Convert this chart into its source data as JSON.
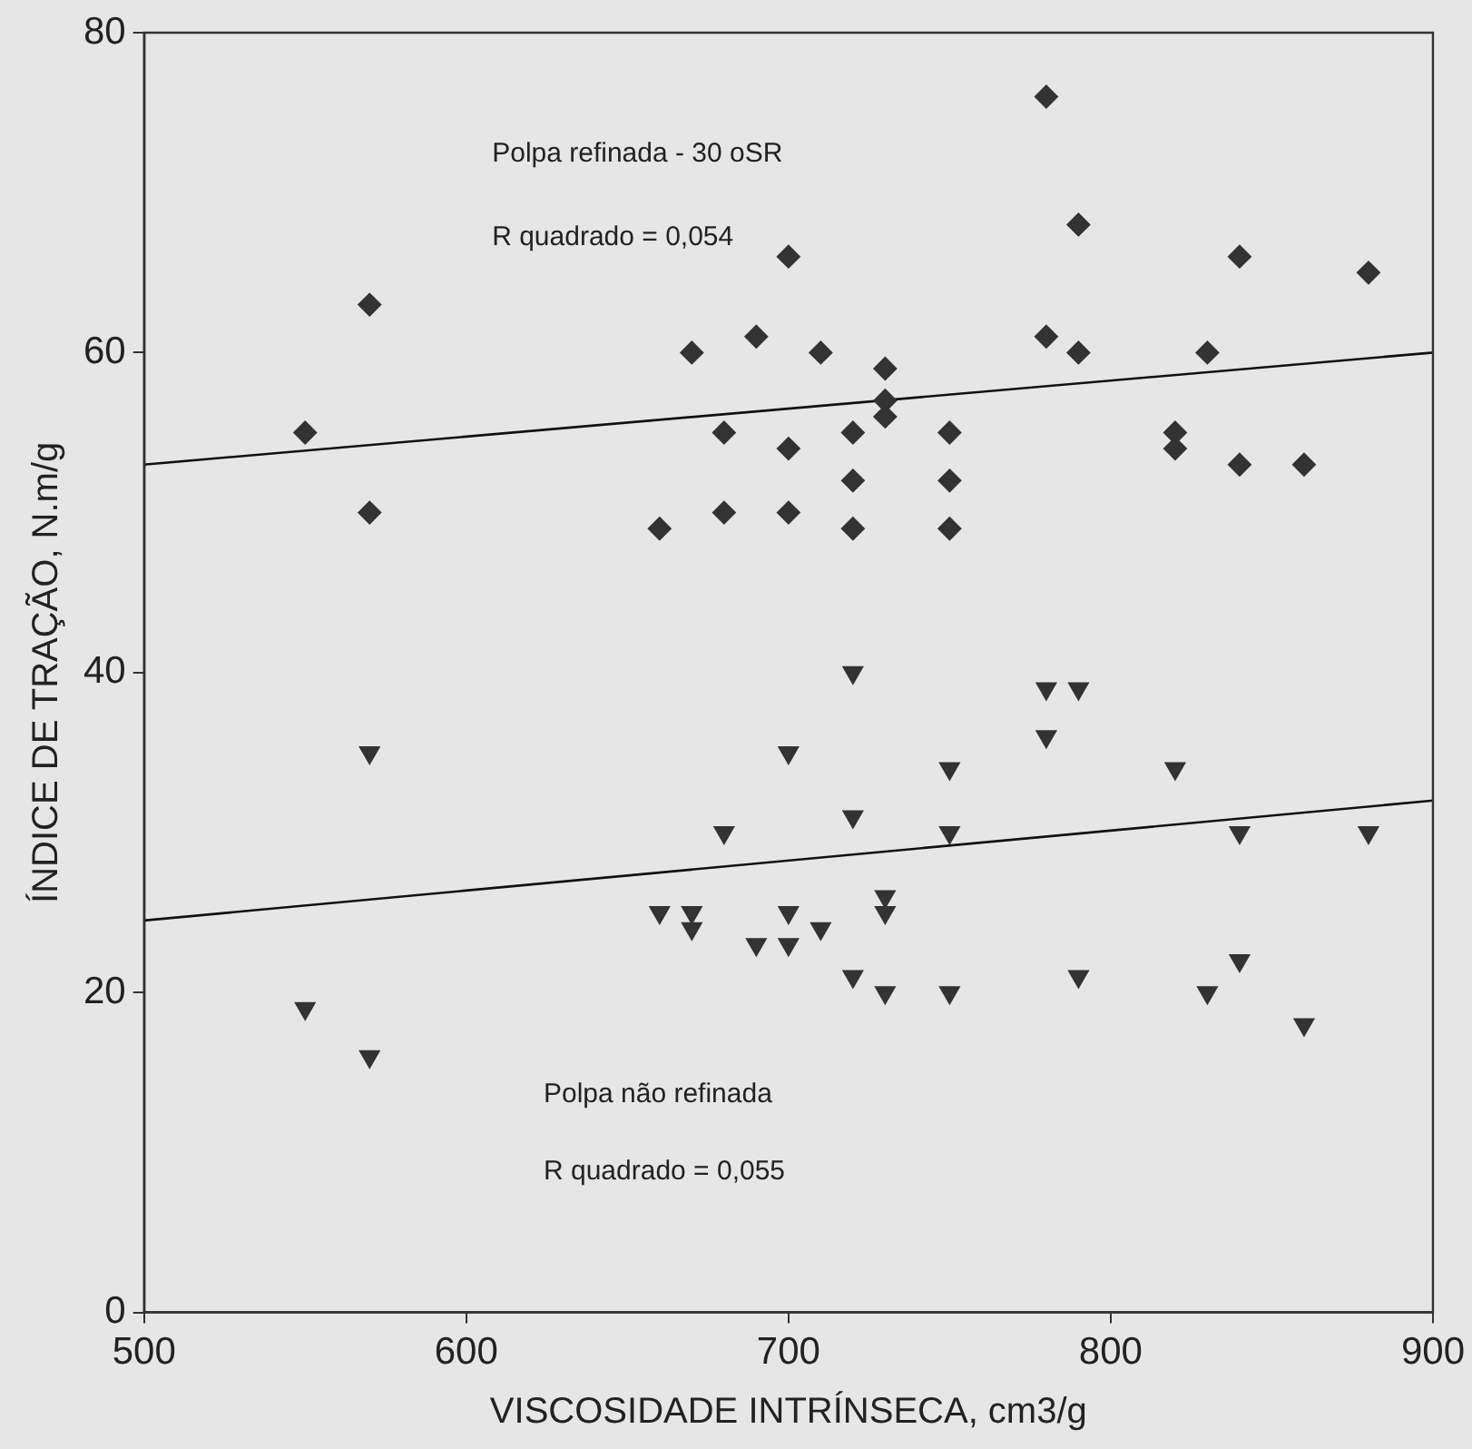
{
  "chart_data": {
    "type": "scatter",
    "xlabel": "VISCOSIDADE INTRÍNSECA, cm3/g",
    "ylabel": "ÍNDICE DE TRAÇÃO, N.m/g",
    "xlim": [
      500,
      900
    ],
    "xticks": [
      500,
      600,
      700,
      800,
      900
    ],
    "ylim": [
      0,
      80
    ],
    "yticks": [
      0,
      20,
      40,
      60,
      80
    ],
    "grid": false,
    "legend": false,
    "annotations": [
      "Polpa refinada - 30 oSR",
      "R quadrado = 0,054",
      "Polpa não refinada",
      "R quadrado = 0,055"
    ],
    "series": [
      {
        "type": "scatter",
        "marker": "diamond",
        "color": "#333333",
        "x": [
          550,
          570,
          570,
          660,
          670,
          680,
          680,
          690,
          700,
          700,
          700,
          710,
          720,
          720,
          720,
          730,
          730,
          730,
          750,
          750,
          750,
          780,
          780,
          790,
          790,
          820,
          820,
          830,
          840,
          840,
          860,
          880
        ],
        "values": [
          55,
          63,
          50,
          49,
          60,
          55,
          50,
          61,
          66,
          54,
          50,
          60,
          55,
          52,
          49,
          59,
          57,
          56,
          55,
          52,
          49,
          76,
          61,
          68,
          60,
          55,
          54,
          60,
          66,
          53,
          53,
          65
        ]
      },
      {
        "type": "scatter",
        "marker": "triangle",
        "color": "#333333",
        "x": [
          550,
          570,
          570,
          660,
          670,
          670,
          680,
          690,
          700,
          700,
          700,
          710,
          720,
          720,
          720,
          730,
          730,
          730,
          750,
          750,
          750,
          780,
          780,
          790,
          790,
          820,
          830,
          840,
          840,
          860,
          880
        ],
        "values": [
          19,
          35,
          16,
          25,
          25,
          24,
          30,
          23,
          35,
          25,
          23,
          24,
          40,
          31,
          21,
          26,
          25,
          20,
          34,
          30,
          20,
          39,
          36,
          39,
          21,
          34,
          20,
          30,
          22,
          18,
          30
        ]
      },
      {
        "type": "line",
        "marker": "none",
        "color": "#111111",
        "x": [
          500,
          900
        ],
        "values": [
          53,
          60
        ]
      },
      {
        "type": "line",
        "marker": "none",
        "color": "#111111",
        "x": [
          500,
          900
        ],
        "values": [
          24.5,
          32
        ]
      }
    ]
  }
}
